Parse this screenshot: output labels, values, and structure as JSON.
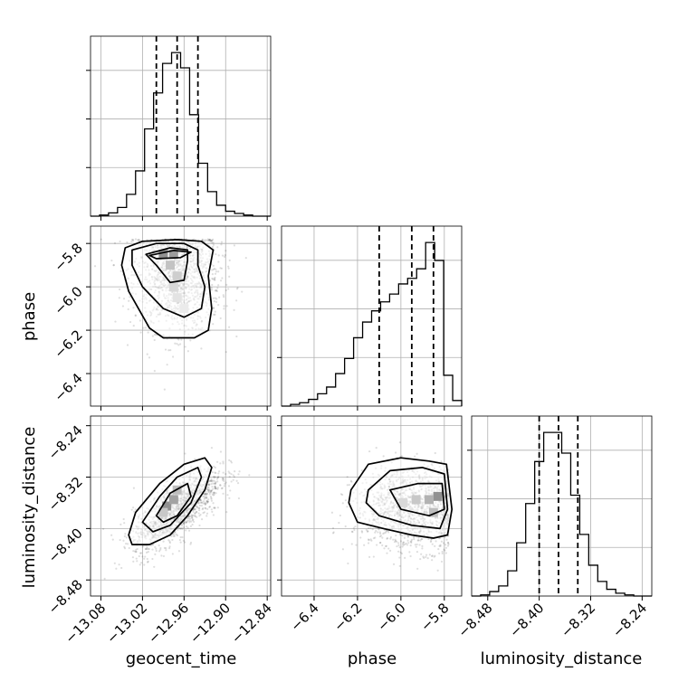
{
  "chart_data": {
    "type": "corner",
    "parameters": [
      "geocent_time",
      "phase",
      "luminosity_distance"
    ],
    "axis_labels": {
      "geocent_time": "geocent_time",
      "phase": "phase",
      "luminosity_distance": "luminosity_distance"
    },
    "ranges": {
      "geocent_time": [
        -13.095,
        -12.835
      ],
      "phase": [
        -6.55,
        -5.72
      ],
      "luminosity_distance": [
        -8.505,
        -8.225
      ]
    },
    "ticks": {
      "geocent_time": [
        -13.08,
        -13.02,
        -12.96,
        -12.9,
        -12.84
      ],
      "phase": [
        -6.4,
        -6.2,
        -6.0,
        -5.8
      ],
      "luminosity_distance": [
        -8.48,
        -8.4,
        -8.32,
        -8.24
      ]
    },
    "tick_labels": {
      "geocent_time": [
        "−13.08",
        "−13.02",
        "−12.96",
        "−12.90",
        "−12.84"
      ],
      "phase": [
        "−6.4",
        "−6.2",
        "−6.0",
        "−5.8"
      ],
      "luminosity_distance": [
        "−8.48",
        "−8.40",
        "−8.32",
        "−8.24"
      ]
    },
    "quantiles": {
      "geocent_time": [
        -13.0,
        -12.97,
        -12.94
      ],
      "phase": [
        -6.1,
        -5.95,
        -5.85
      ],
      "luminosity_distance": [
        -8.4,
        -8.37,
        -8.34
      ]
    },
    "histograms": {
      "geocent_time": {
        "edges": [
          -13.095,
          -13.082,
          -13.069,
          -13.056,
          -13.043,
          -13.03,
          -13.017,
          -13.004,
          -12.991,
          -12.978,
          -12.965,
          -12.952,
          -12.939,
          -12.926,
          -12.913,
          -12.9,
          -12.887,
          -12.874,
          -12.861,
          -12.848,
          -12.835
        ],
        "counts": [
          0,
          2,
          6,
          16,
          40,
          83,
          160,
          226,
          280,
          300,
          272,
          186,
          97,
          45,
          20,
          9,
          5,
          2,
          0,
          0
        ]
      },
      "phase": {
        "edges": [
          -6.55,
          -6.5085,
          -6.467,
          -6.4255,
          -6.384,
          -6.3425,
          -6.301,
          -6.2595,
          -6.218,
          -6.1765,
          -6.135,
          -6.0935,
          -6.052,
          -6.0105,
          -5.969,
          -5.9275,
          -5.886,
          -5.8445,
          -5.803,
          -5.7615,
          -5.72
        ],
        "counts": [
          0,
          3,
          6,
          12,
          22,
          34,
          58,
          85,
          122,
          150,
          170,
          186,
          200,
          218,
          228,
          245,
          292,
          260,
          55,
          10
        ]
      },
      "luminosity_distance": {
        "edges": [
          -8.505,
          -8.491,
          -8.477,
          -8.463,
          -8.449,
          -8.435,
          -8.421,
          -8.407,
          -8.393,
          -8.379,
          -8.365,
          -8.351,
          -8.337,
          -8.323,
          -8.309,
          -8.295,
          -8.281,
          -8.267,
          -8.253,
          -8.239,
          -8.225
        ],
        "counts": [
          0,
          2,
          8,
          18,
          45,
          95,
          165,
          240,
          292,
          292,
          255,
          180,
          110,
          55,
          26,
          12,
          5,
          2,
          0,
          0
        ]
      }
    },
    "pairs": [
      {
        "x": "geocent_time",
        "y": "phase",
        "correlation": -0.05,
        "contours": [
          [
            [
              -13.045,
              -5.82
            ],
            [
              -13.02,
              -5.79
            ],
            [
              -12.97,
              -5.782
            ],
            [
              -12.935,
              -5.79
            ],
            [
              -12.918,
              -5.83
            ],
            [
              -12.925,
              -5.95
            ],
            [
              -12.92,
              -6.1
            ],
            [
              -12.925,
              -6.2
            ],
            [
              -12.945,
              -6.235
            ],
            [
              -12.99,
              -6.235
            ],
            [
              -13.01,
              -6.19
            ],
            [
              -13.04,
              -6.02
            ],
            [
              -13.05,
              -5.9
            ]
          ],
          [
            [
              -13.035,
              -5.83
            ],
            [
              -13.0,
              -5.8
            ],
            [
              -12.96,
              -5.8
            ],
            [
              -12.94,
              -5.83
            ],
            [
              -12.94,
              -5.9
            ],
            [
              -12.93,
              -6.0
            ],
            [
              -12.935,
              -6.1
            ],
            [
              -12.96,
              -6.14
            ],
            [
              -12.99,
              -6.1
            ],
            [
              -13.02,
              -6.0
            ],
            [
              -13.035,
              -5.9
            ]
          ],
          [
            [
              -13.015,
              -5.85
            ],
            [
              -12.98,
              -5.82
            ],
            [
              -12.955,
              -5.83
            ],
            [
              -12.955,
              -5.88
            ],
            [
              -12.96,
              -5.97
            ],
            [
              -12.98,
              -5.98
            ],
            [
              -13.0,
              -5.9
            ]
          ],
          [
            [
              -13.01,
              -5.855
            ],
            [
              -12.975,
              -5.832
            ],
            [
              -12.95,
              -5.84
            ],
            [
              -12.965,
              -5.865
            ],
            [
              -13.0,
              -5.87
            ]
          ]
        ],
        "core_bins": [
          [
            -12.99,
            -5.85,
            1.0
          ],
          [
            -12.975,
            -5.85,
            0.9
          ],
          [
            -12.98,
            -5.9,
            0.55
          ],
          [
            -12.97,
            -5.95,
            0.45
          ],
          [
            -12.975,
            -6.0,
            0.35
          ],
          [
            -12.97,
            -6.05,
            0.25
          ],
          [
            -12.96,
            -6.1,
            0.18
          ]
        ]
      },
      {
        "x": "geocent_time",
        "y": "luminosity_distance",
        "correlation": 0.72,
        "contours": [
          [
            [
              -13.04,
              -8.41
            ],
            [
              -13.03,
              -8.375
            ],
            [
              -12.995,
              -8.33
            ],
            [
              -12.96,
              -8.3
            ],
            [
              -12.93,
              -8.29
            ],
            [
              -12.92,
              -8.305
            ],
            [
              -12.93,
              -8.34
            ],
            [
              -12.955,
              -8.38
            ],
            [
              -12.98,
              -8.41
            ],
            [
              -13.01,
              -8.425
            ],
            [
              -13.035,
              -8.425
            ]
          ],
          [
            [
              -13.02,
              -8.39
            ],
            [
              -12.995,
              -8.35
            ],
            [
              -12.97,
              -8.32
            ],
            [
              -12.94,
              -8.305
            ],
            [
              -12.935,
              -8.32
            ],
            [
              -12.95,
              -8.36
            ],
            [
              -12.98,
              -8.395
            ],
            [
              -13.005,
              -8.405
            ]
          ],
          [
            [
              -13.0,
              -8.38
            ],
            [
              -12.98,
              -8.345
            ],
            [
              -12.955,
              -8.33
            ],
            [
              -12.95,
              -8.35
            ],
            [
              -12.97,
              -8.38
            ],
            [
              -12.99,
              -8.39
            ]
          ]
        ],
        "core_bins": [
          [
            -12.985,
            -8.365,
            1.0
          ],
          [
            -12.975,
            -8.355,
            0.85
          ],
          [
            -12.97,
            -8.34,
            0.6
          ],
          [
            -12.99,
            -8.375,
            0.5
          ]
        ]
      },
      {
        "x": "phase",
        "y": "luminosity_distance",
        "correlation": 0.0,
        "contours": [
          [
            [
              -6.23,
              -8.34
            ],
            [
              -6.15,
              -8.3
            ],
            [
              -6.0,
              -8.29
            ],
            [
              -5.87,
              -8.295
            ],
            [
              -5.79,
              -8.3
            ],
            [
              -5.765,
              -8.37
            ],
            [
              -5.785,
              -8.41
            ],
            [
              -5.85,
              -8.415
            ],
            [
              -5.95,
              -8.41
            ],
            [
              -6.08,
              -8.4
            ],
            [
              -6.2,
              -8.39
            ],
            [
              -6.24,
              -8.36
            ]
          ],
          [
            [
              -6.15,
              -8.34
            ],
            [
              -6.05,
              -8.31
            ],
            [
              -5.9,
              -8.305
            ],
            [
              -5.8,
              -8.315
            ],
            [
              -5.785,
              -8.37
            ],
            [
              -5.82,
              -8.4
            ],
            [
              -5.95,
              -8.395
            ],
            [
              -6.1,
              -8.38
            ],
            [
              -6.16,
              -8.36
            ]
          ],
          [
            [
              -6.05,
              -8.34
            ],
            [
              -5.92,
              -8.33
            ],
            [
              -5.81,
              -8.33
            ],
            [
              -5.8,
              -8.37
            ],
            [
              -5.87,
              -8.38
            ],
            [
              -6.0,
              -8.37
            ]
          ]
        ],
        "core_bins": [
          [
            -5.83,
            -8.35,
            1.0
          ],
          [
            -5.87,
            -8.355,
            0.7
          ],
          [
            -5.93,
            -8.355,
            0.5
          ],
          [
            -5.99,
            -8.36,
            0.35
          ],
          [
            -5.85,
            -8.375,
            0.6
          ]
        ]
      }
    ],
    "grid": true
  }
}
